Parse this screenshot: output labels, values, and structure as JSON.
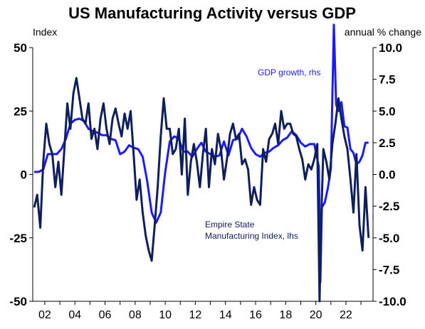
{
  "chart_data": {
    "type": "line",
    "title": "US Manufacturing Activity versus GDP",
    "ylabel_left": "Index",
    "ylabel_right": "annual % change",
    "ylim_left": [
      -50,
      50
    ],
    "ylim_right": [
      -10,
      10
    ],
    "yticks_left": [
      "50",
      "25",
      "0",
      "-25",
      "-50"
    ],
    "yticks_right": [
      "10.0",
      "7.5",
      "5.0",
      "2.5",
      "0.0",
      "-2.5",
      "-5.0",
      "-7.5",
      "-10.0"
    ],
    "xticks": [
      "02",
      "04",
      "06",
      "08",
      "10",
      "12",
      "14",
      "16",
      "18",
      "20",
      "22"
    ],
    "grid": false,
    "colors": {
      "empire": "#0f1f5c",
      "gdp": "#1a1aff"
    },
    "series": [
      {
        "name": "Empire State Manufacturing Index, lhs",
        "axis": "left",
        "x": [
          2001.3,
          2001.5,
          2001.7,
          2001.9,
          2002.1,
          2002.3,
          2002.5,
          2002.7,
          2002.9,
          2003.1,
          2003.3,
          2003.5,
          2003.7,
          2003.9,
          2004.1,
          2004.3,
          2004.5,
          2004.7,
          2004.9,
          2005.1,
          2005.3,
          2005.5,
          2005.7,
          2005.9,
          2006.1,
          2006.3,
          2006.5,
          2006.7,
          2006.9,
          2007.1,
          2007.3,
          2007.5,
          2007.7,
          2007.9,
          2008.1,
          2008.3,
          2008.5,
          2008.7,
          2008.9,
          2009.1,
          2009.3,
          2009.5,
          2009.7,
          2009.9,
          2010.1,
          2010.3,
          2010.5,
          2010.7,
          2010.9,
          2011.1,
          2011.3,
          2011.5,
          2011.7,
          2011.9,
          2012.1,
          2012.3,
          2012.5,
          2012.7,
          2012.9,
          2013.1,
          2013.3,
          2013.5,
          2013.7,
          2013.9,
          2014.1,
          2014.3,
          2014.5,
          2014.7,
          2014.9,
          2015.1,
          2015.3,
          2015.5,
          2015.7,
          2015.9,
          2016.1,
          2016.3,
          2016.5,
          2016.7,
          2016.9,
          2017.1,
          2017.3,
          2017.5,
          2017.7,
          2017.9,
          2018.1,
          2018.3,
          2018.5,
          2018.7,
          2018.9,
          2019.1,
          2019.3,
          2019.5,
          2019.7,
          2019.9,
          2020.1,
          2020.25,
          2020.35,
          2020.5,
          2020.7,
          2020.9,
          2021.1,
          2021.3,
          2021.5,
          2021.7,
          2021.9,
          2022.1,
          2022.3,
          2022.5,
          2022.7,
          2022.9,
          2023.1,
          2023.3,
          2023.5
        ],
        "values": [
          -13,
          -8,
          -21,
          5,
          20,
          12,
          8,
          -5,
          5,
          -8,
          10,
          28,
          18,
          32,
          38,
          30,
          22,
          20,
          28,
          14,
          18,
          10,
          22,
          28,
          18,
          12,
          22,
          26,
          20,
          15,
          24,
          18,
          25,
          8,
          -10,
          -2,
          -15,
          -24,
          -30,
          -34,
          -20,
          -5,
          15,
          30,
          18,
          18,
          8,
          10,
          18,
          0,
          22,
          -8,
          5,
          12,
          5,
          -5,
          8,
          18,
          -5,
          10,
          4,
          16,
          10,
          -2,
          6,
          16,
          20,
          14,
          16,
          4,
          6,
          2,
          -12,
          -5,
          -10,
          -12,
          10,
          5,
          14,
          16,
          20,
          12,
          25,
          18,
          20,
          20,
          16,
          15,
          10,
          6,
          -2,
          4,
          2,
          6,
          12,
          -50,
          -20,
          10,
          5,
          -2,
          12,
          20,
          30,
          22,
          15,
          10,
          -2,
          -15,
          8,
          -20,
          -30,
          -5,
          -25
        ]
      },
      {
        "name": "GDP growth, rhs",
        "axis": "right",
        "x": [
          2001.3,
          2001.6,
          2001.9,
          2002.2,
          2002.5,
          2002.8,
          2003.1,
          2003.4,
          2003.7,
          2004.0,
          2004.3,
          2004.6,
          2004.9,
          2005.2,
          2005.5,
          2005.8,
          2006.1,
          2006.4,
          2006.7,
          2007.0,
          2007.3,
          2007.6,
          2007.9,
          2008.2,
          2008.5,
          2008.8,
          2009.1,
          2009.4,
          2009.7,
          2010.0,
          2010.3,
          2010.6,
          2010.9,
          2011.2,
          2011.5,
          2011.8,
          2012.1,
          2012.4,
          2012.7,
          2013.0,
          2013.3,
          2013.6,
          2013.9,
          2014.2,
          2014.5,
          2014.8,
          2015.1,
          2015.4,
          2015.7,
          2016.0,
          2016.3,
          2016.6,
          2016.9,
          2017.2,
          2017.5,
          2017.8,
          2018.1,
          2018.4,
          2018.7,
          2019.0,
          2019.3,
          2019.6,
          2019.9,
          2020.2,
          2020.3,
          2020.4,
          2020.6,
          2020.8,
          2021.0,
          2021.2,
          2021.35,
          2021.5,
          2021.7,
          2021.9,
          2022.1,
          2022.3,
          2022.5,
          2022.7,
          2022.9,
          2023.1,
          2023.3,
          2023.5
        ],
        "values": [
          0.2,
          0.2,
          0.4,
          1.6,
          1.6,
          1.6,
          2.0,
          2.8,
          4.0,
          4.3,
          4.4,
          4.2,
          3.6,
          3.4,
          3.3,
          3.1,
          3.1,
          2.8,
          2.7,
          1.6,
          1.8,
          2.3,
          2.1,
          2.0,
          1.4,
          -0.5,
          -3.0,
          -3.8,
          -3.0,
          0.2,
          2.6,
          3.0,
          2.8,
          1.8,
          1.8,
          1.4,
          2.0,
          2.5,
          1.8,
          1.6,
          1.4,
          1.5,
          2.6,
          1.5,
          2.7,
          2.8,
          3.6,
          3.0,
          2.1,
          1.6,
          1.4,
          1.7,
          1.8,
          2.1,
          2.3,
          2.7,
          2.9,
          3.4,
          3.1,
          2.5,
          2.2,
          2.4,
          2.4,
          0.6,
          -8.5,
          -2.6,
          -2.2,
          -1.1,
          0.5,
          11.8,
          5.5,
          5.0,
          5.7,
          3.8,
          3.7,
          2.0,
          1.7,
          0.8,
          1.0,
          1.5,
          2.5,
          2.5
        ]
      }
    ],
    "annotations": [
      {
        "series": "gdp",
        "lines": [
          "GDP growth, rhs"
        ]
      },
      {
        "series": "empire",
        "lines": [
          "Empire State",
          "Manufacturing Index, lhs"
        ]
      }
    ]
  }
}
